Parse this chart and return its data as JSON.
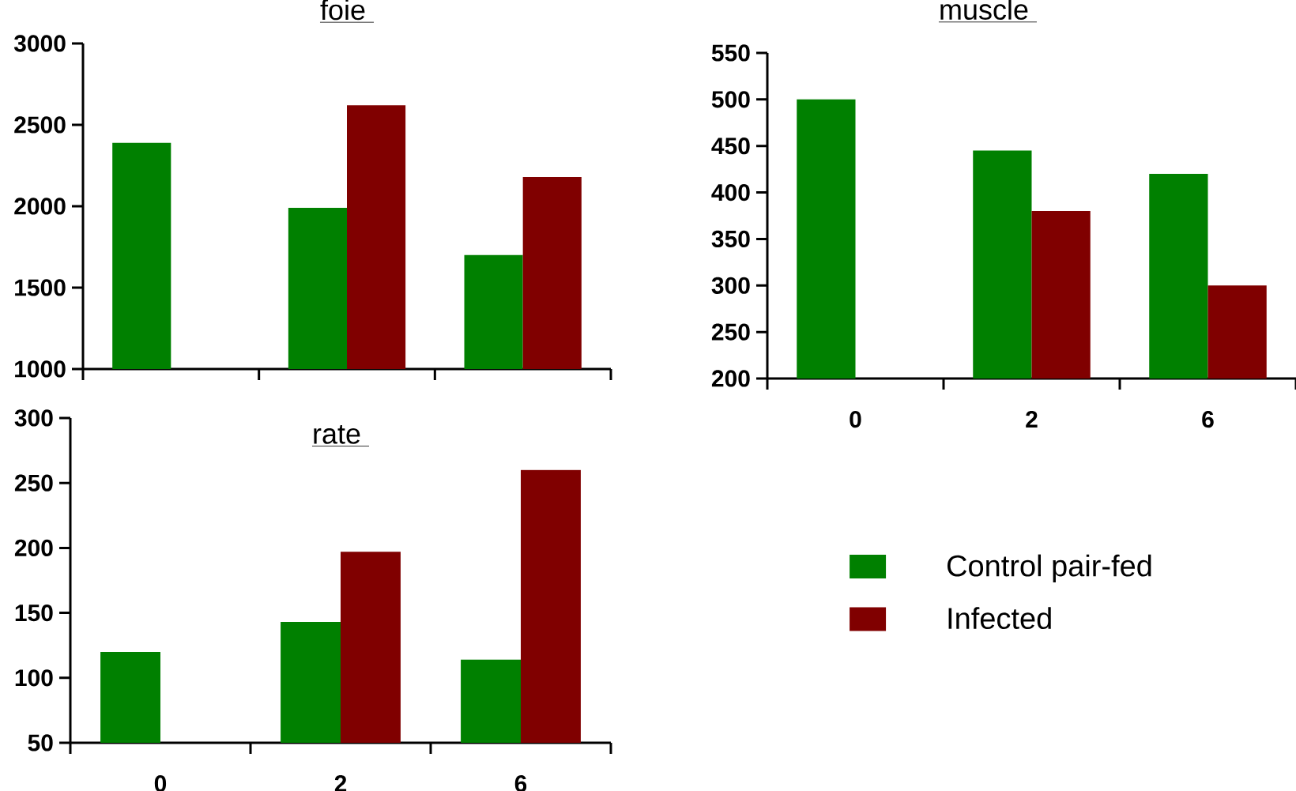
{
  "chart_data": [
    {
      "type": "bar",
      "title": "foie ",
      "categories": [
        "0",
        "2",
        "6"
      ],
      "tick_labels": "y",
      "ylim": [
        1000,
        3000
      ],
      "yticks": [
        1000,
        1500,
        2000,
        2500,
        3000
      ],
      "series": [
        {
          "color": "#008000",
          "values": [
            2390,
            1990,
            1700
          ]
        },
        {
          "color": "#800000",
          "values": [
            null,
            2620,
            2180
          ]
        }
      ]
    },
    {
      "type": "bar",
      "title": "muscle ",
      "categories": [
        "0",
        "2",
        "6"
      ],
      "ylim": [
        200,
        550
      ],
      "yticks": [
        200,
        250,
        300,
        350,
        400,
        450,
        500,
        550
      ],
      "legend": "bottom",
      "series": [
        {
          "name": "Control pair-fed",
          "color": "#008000",
          "values": [
            500,
            445,
            420
          ]
        },
        {
          "name": "Infected",
          "color": "#800000",
          "values": [
            null,
            380,
            300
          ]
        }
      ]
    },
    {
      "type": "bar",
      "title": "rate ",
      "categories": [
        "0",
        "2",
        "6"
      ],
      "ylim": [
        50,
        300
      ],
      "yticks": [
        50,
        100,
        150,
        200,
        250,
        300
      ],
      "series": [
        {
          "color": "#008000",
          "values": [
            120,
            143,
            114
          ]
        },
        {
          "color": "#800000",
          "values": [
            null,
            197,
            260
          ]
        }
      ]
    }
  ]
}
